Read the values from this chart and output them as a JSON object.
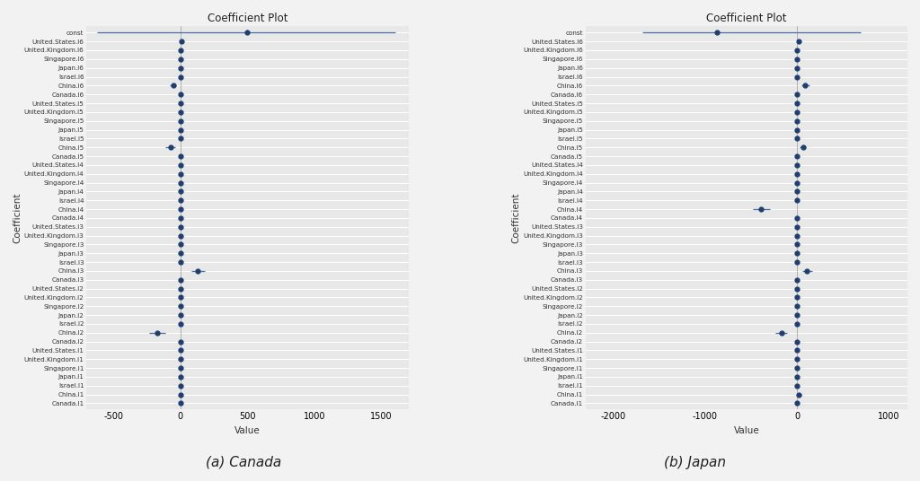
{
  "title": "Coefficient Plot",
  "xlabel": "Value",
  "ylabel": "Coefficient",
  "subtitle_canada": "(a) Canada",
  "subtitle_japan": "(b) Japan",
  "labels": [
    "const",
    "United.States.l6",
    "United.Kingdom.l6",
    "Singapore.l6",
    "Japan.l6",
    "Israel.l6",
    "China.l6",
    "Canada.l6",
    "United.States.l5",
    "United.Kingdom.l5",
    "Singapore.l5",
    "Japan.l5",
    "Israel.l5",
    "China.l5",
    "Canada.l5",
    "United.States.l4",
    "United.Kingdom.l4",
    "Singapore.l4",
    "Japan.l4",
    "Israel.l4",
    "China.l4",
    "Canada.l4",
    "United.States.l3",
    "United.Kingdom.l3",
    "Singapore.l3",
    "Japan.l3",
    "Israel.l3",
    "China.l3",
    "Canada.l3",
    "United.States.l2",
    "United.Kingdom.l2",
    "Singapore.l2",
    "Japan.l2",
    "Israel.l2",
    "China.l2",
    "Canada.l2",
    "United.States.l1",
    "United.Kingdom.l1",
    "Singapore.l1",
    "Japan.l1",
    "Israel.l1",
    "China.l1",
    "Canada.l1"
  ],
  "canada_values": [
    500,
    10,
    2,
    2,
    2,
    2,
    -55,
    2,
    2,
    2,
    2,
    2,
    2,
    -75,
    2,
    2,
    2,
    2,
    2,
    2,
    2,
    2,
    2,
    2,
    2,
    2,
    2,
    130,
    2,
    2,
    2,
    2,
    2,
    2,
    -170,
    2,
    2,
    2,
    2,
    2,
    2,
    5,
    2
  ],
  "japan_values": [
    -870,
    15,
    2,
    2,
    2,
    2,
    90,
    2,
    2,
    2,
    2,
    2,
    2,
    65,
    2,
    2,
    2,
    2,
    2,
    2,
    -390,
    2,
    2,
    2,
    2,
    2,
    2,
    110,
    2,
    2,
    2,
    2,
    2,
    2,
    -170,
    2,
    2,
    2,
    2,
    2,
    2,
    20,
    2
  ],
  "canada_ci_low": [
    -620,
    5,
    0,
    0,
    0,
    0,
    -80,
    0,
    0,
    0,
    0,
    0,
    0,
    -110,
    0,
    0,
    0,
    0,
    0,
    0,
    0,
    0,
    0,
    0,
    0,
    0,
    0,
    80,
    0,
    0,
    0,
    0,
    0,
    0,
    -230,
    0,
    0,
    0,
    0,
    0,
    0,
    -5,
    0
  ],
  "canada_ci_high": [
    1600,
    20,
    5,
    5,
    5,
    5,
    -30,
    5,
    5,
    5,
    5,
    5,
    5,
    -40,
    5,
    5,
    5,
    5,
    5,
    5,
    5,
    5,
    5,
    5,
    5,
    5,
    5,
    180,
    5,
    5,
    5,
    5,
    5,
    5,
    -110,
    5,
    5,
    5,
    5,
    5,
    5,
    15,
    5
  ],
  "japan_ci_low": [
    -1680,
    5,
    0,
    0,
    0,
    0,
    50,
    0,
    0,
    0,
    0,
    0,
    0,
    30,
    0,
    0,
    0,
    0,
    0,
    0,
    -480,
    0,
    0,
    0,
    0,
    0,
    0,
    55,
    0,
    0,
    0,
    0,
    0,
    0,
    -235,
    0,
    0,
    0,
    0,
    0,
    0,
    -10,
    0
  ],
  "japan_ci_high": [
    690,
    25,
    5,
    5,
    5,
    5,
    130,
    5,
    5,
    5,
    5,
    5,
    5,
    100,
    5,
    5,
    5,
    5,
    5,
    5,
    -300,
    5,
    5,
    5,
    5,
    5,
    5,
    165,
    5,
    5,
    5,
    5,
    5,
    5,
    -105,
    5,
    5,
    5,
    5,
    5,
    5,
    50,
    5
  ],
  "dot_color": "#1f3e6e",
  "line_color": "#4a6fa5",
  "bg_color": "#e8e8e8",
  "grid_color": "#ffffff",
  "fig_color": "#f2f2f2",
  "canada_xlim": [
    -700,
    1700
  ],
  "japan_xlim": [
    -2300,
    1200
  ],
  "canada_xticks": [
    -500,
    0,
    500,
    1000,
    1500
  ],
  "japan_xticks": [
    -2000,
    -1000,
    0,
    1000
  ]
}
